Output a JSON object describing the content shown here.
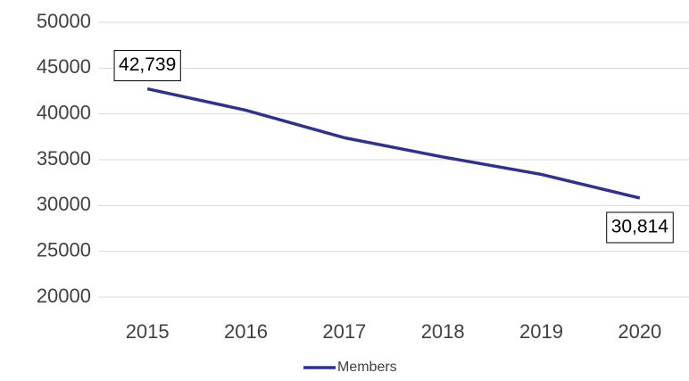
{
  "chart_data": {
    "type": "line",
    "categories": [
      "2015",
      "2016",
      "2017",
      "2018",
      "2019",
      "2020"
    ],
    "series": [
      {
        "name": "Members",
        "color": "#2e3192",
        "values": [
          42739,
          40400,
          37400,
          35300,
          33400,
          30814
        ],
        "value_labels": [
          "42,739",
          null,
          null,
          null,
          null,
          "30,814"
        ]
      }
    ],
    "ylim": [
      20000,
      50000
    ],
    "yticks": [
      20000,
      25000,
      30000,
      35000,
      40000,
      45000,
      50000
    ],
    "grid": true,
    "legend": "bottom"
  }
}
